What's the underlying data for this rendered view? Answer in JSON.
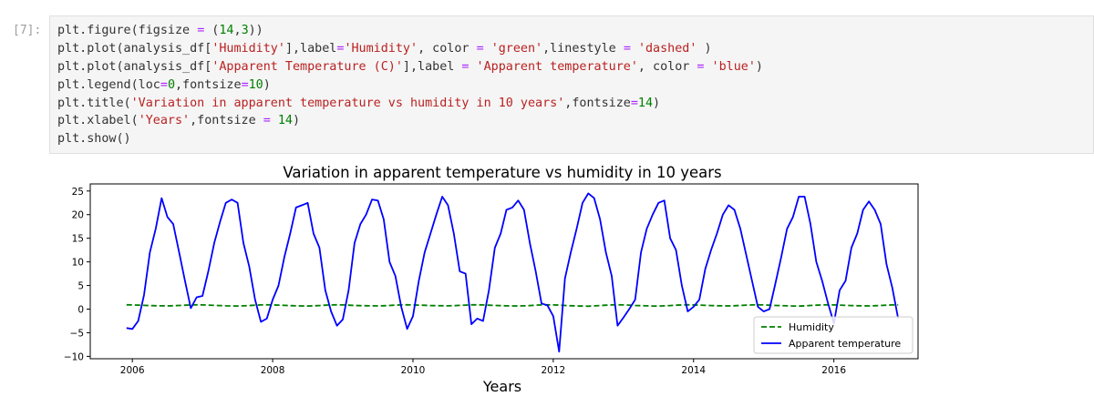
{
  "cell": {
    "prompt": "[7]:",
    "code_lines": [
      [
        {
          "t": "plt.figure(figsize ",
          "c": "var"
        },
        {
          "t": "=",
          "c": "kw"
        },
        {
          "t": " (",
          "c": "var"
        },
        {
          "t": "14",
          "c": "num"
        },
        {
          "t": ",",
          "c": "var"
        },
        {
          "t": "3",
          "c": "num"
        },
        {
          "t": "))",
          "c": "var"
        }
      ],
      [
        {
          "t": "plt.plot(analysis_df[",
          "c": "var"
        },
        {
          "t": "'Humidity'",
          "c": "str"
        },
        {
          "t": "],label",
          "c": "var"
        },
        {
          "t": "=",
          "c": "kw"
        },
        {
          "t": "'Humidity'",
          "c": "str"
        },
        {
          "t": ", color ",
          "c": "var"
        },
        {
          "t": "=",
          "c": "kw"
        },
        {
          "t": " ",
          "c": "var"
        },
        {
          "t": "'green'",
          "c": "str"
        },
        {
          "t": ",linestyle ",
          "c": "var"
        },
        {
          "t": "=",
          "c": "kw"
        },
        {
          "t": " ",
          "c": "var"
        },
        {
          "t": "'dashed'",
          "c": "str"
        },
        {
          "t": " )",
          "c": "var"
        }
      ],
      [
        {
          "t": "plt.plot(analysis_df[",
          "c": "var"
        },
        {
          "t": "'Apparent Temperature (C)'",
          "c": "str"
        },
        {
          "t": "],label ",
          "c": "var"
        },
        {
          "t": "=",
          "c": "kw"
        },
        {
          "t": " ",
          "c": "var"
        },
        {
          "t": "'Apparent temperature'",
          "c": "str"
        },
        {
          "t": ", color ",
          "c": "var"
        },
        {
          "t": "=",
          "c": "kw"
        },
        {
          "t": " ",
          "c": "var"
        },
        {
          "t": "'blue'",
          "c": "str"
        },
        {
          "t": ")",
          "c": "var"
        }
      ],
      [
        {
          "t": "plt.legend(loc",
          "c": "var"
        },
        {
          "t": "=",
          "c": "kw"
        },
        {
          "t": "0",
          "c": "num"
        },
        {
          "t": ",fontsize",
          "c": "var"
        },
        {
          "t": "=",
          "c": "kw"
        },
        {
          "t": "10",
          "c": "num"
        },
        {
          "t": ")",
          "c": "var"
        }
      ],
      [
        {
          "t": "plt.title(",
          "c": "var"
        },
        {
          "t": "'Variation in apparent temperature vs humidity in 10 years'",
          "c": "str"
        },
        {
          "t": ",fontsize",
          "c": "var"
        },
        {
          "t": "=",
          "c": "kw"
        },
        {
          "t": "14",
          "c": "num"
        },
        {
          "t": ")",
          "c": "var"
        }
      ],
      [
        {
          "t": "plt.xlabel(",
          "c": "var"
        },
        {
          "t": "'Years'",
          "c": "str"
        },
        {
          "t": ",fontsize ",
          "c": "var"
        },
        {
          "t": "=",
          "c": "kw"
        },
        {
          "t": " ",
          "c": "var"
        },
        {
          "t": "14",
          "c": "num"
        },
        {
          "t": ")",
          "c": "var"
        }
      ],
      [
        {
          "t": "plt.show()",
          "c": "var"
        }
      ]
    ]
  },
  "colors": {
    "humidity": "#008000",
    "temperature": "#0000ff",
    "str": "#ba2121",
    "num": "#008000",
    "kw": "#aa22ff"
  },
  "chart_data": {
    "type": "line",
    "title": "Variation in apparent temperature vs humidity in 10 years",
    "xlabel": "Years",
    "ylabel": "",
    "xlim": [
      2005.4,
      2017.2
    ],
    "ylim": [
      -10.5,
      26.5
    ],
    "x_ticks": [
      2006,
      2008,
      2010,
      2012,
      2014,
      2016
    ],
    "y_ticks": [
      -10,
      -5,
      0,
      5,
      10,
      15,
      20,
      25
    ],
    "grid": false,
    "legend_position": "bottom-right",
    "series": [
      {
        "name": "Humidity",
        "color": "#008000",
        "linestyle": "dashed",
        "x": [
          2005.917,
          2006.0,
          2006.083,
          2006.167,
          2006.25,
          2006.333,
          2006.417,
          2006.5,
          2006.583,
          2006.667,
          2006.75,
          2006.833,
          2006.917,
          2007.0,
          2007.083,
          2007.167,
          2007.25,
          2007.333,
          2007.417,
          2007.5,
          2007.583,
          2007.667,
          2007.75,
          2007.833,
          2007.917,
          2008.0,
          2008.083,
          2008.167,
          2008.25,
          2008.333,
          2008.417,
          2008.5,
          2008.583,
          2008.667,
          2008.75,
          2008.833,
          2008.917,
          2009.0,
          2009.083,
          2009.167,
          2009.25,
          2009.333,
          2009.417,
          2009.5,
          2009.583,
          2009.667,
          2009.75,
          2009.833,
          2009.917,
          2010.0,
          2010.083,
          2010.167,
          2010.25,
          2010.333,
          2010.417,
          2010.5,
          2010.583,
          2010.667,
          2010.75,
          2010.833,
          2010.917,
          2011.0,
          2011.083,
          2011.167,
          2011.25,
          2011.333,
          2011.417,
          2011.5,
          2011.583,
          2011.667,
          2011.75,
          2011.833,
          2011.917,
          2012.0,
          2012.083,
          2012.167,
          2012.25,
          2012.333,
          2012.417,
          2012.5,
          2012.583,
          2012.667,
          2012.75,
          2012.833,
          2012.917,
          2013.0,
          2013.083,
          2013.167,
          2013.25,
          2013.333,
          2013.417,
          2013.5,
          2013.583,
          2013.667,
          2013.75,
          2013.833,
          2013.917,
          2014.0,
          2014.083,
          2014.167,
          2014.25,
          2014.333,
          2014.417,
          2014.5,
          2014.583,
          2014.667,
          2014.75,
          2014.833,
          2014.917,
          2015.0,
          2015.083,
          2015.167,
          2015.25,
          2015.333,
          2015.417,
          2015.5,
          2015.583,
          2015.667,
          2015.75,
          2015.833,
          2015.917,
          2016.0,
          2016.083,
          2016.167,
          2016.25,
          2016.333,
          2016.417,
          2016.5,
          2016.583,
          2016.667,
          2016.75,
          2016.833,
          2016.917
        ],
        "values": [
          0.9,
          0.89,
          0.85,
          0.8,
          0.75,
          0.72,
          0.7,
          0.68,
          0.72,
          0.78,
          0.84,
          0.88,
          0.9,
          0.89,
          0.85,
          0.8,
          0.75,
          0.7,
          0.68,
          0.66,
          0.7,
          0.76,
          0.84,
          0.88,
          0.9,
          0.89,
          0.85,
          0.8,
          0.74,
          0.7,
          0.68,
          0.65,
          0.7,
          0.76,
          0.84,
          0.88,
          0.9,
          0.88,
          0.84,
          0.78,
          0.74,
          0.72,
          0.7,
          0.68,
          0.72,
          0.78,
          0.85,
          0.89,
          0.91,
          0.89,
          0.86,
          0.81,
          0.76,
          0.74,
          0.72,
          0.7,
          0.73,
          0.8,
          0.86,
          0.9,
          0.9,
          0.88,
          0.84,
          0.78,
          0.74,
          0.7,
          0.68,
          0.66,
          0.7,
          0.76,
          0.84,
          0.88,
          0.9,
          0.89,
          0.85,
          0.78,
          0.72,
          0.68,
          0.64,
          0.62,
          0.68,
          0.76,
          0.84,
          0.88,
          0.9,
          0.89,
          0.85,
          0.78,
          0.74,
          0.7,
          0.66,
          0.64,
          0.7,
          0.76,
          0.84,
          0.88,
          0.9,
          0.89,
          0.86,
          0.8,
          0.76,
          0.72,
          0.7,
          0.68,
          0.72,
          0.78,
          0.85,
          0.89,
          0.9,
          0.88,
          0.84,
          0.78,
          0.74,
          0.7,
          0.66,
          0.64,
          0.7,
          0.77,
          0.84,
          0.88,
          0.9,
          0.89,
          0.85,
          0.8,
          0.75,
          0.72,
          0.7,
          0.68,
          0.72,
          0.78,
          0.84,
          0.88,
          0.9
        ]
      },
      {
        "name": "Apparent temperature",
        "color": "#0000ff",
        "linestyle": "solid",
        "x": [
          2005.917,
          2006.0,
          2006.083,
          2006.167,
          2006.25,
          2006.333,
          2006.417,
          2006.5,
          2006.583,
          2006.667,
          2006.75,
          2006.833,
          2006.917,
          2007.0,
          2007.083,
          2007.167,
          2007.25,
          2007.333,
          2007.417,
          2007.5,
          2007.583,
          2007.667,
          2007.75,
          2007.833,
          2007.917,
          2008.0,
          2008.083,
          2008.167,
          2008.25,
          2008.333,
          2008.417,
          2008.5,
          2008.583,
          2008.667,
          2008.75,
          2008.833,
          2008.917,
          2009.0,
          2009.083,
          2009.167,
          2009.25,
          2009.333,
          2009.417,
          2009.5,
          2009.583,
          2009.667,
          2009.75,
          2009.833,
          2009.917,
          2010.0,
          2010.083,
          2010.167,
          2010.25,
          2010.333,
          2010.417,
          2010.5,
          2010.583,
          2010.667,
          2010.75,
          2010.833,
          2010.917,
          2011.0,
          2011.083,
          2011.167,
          2011.25,
          2011.333,
          2011.417,
          2011.5,
          2011.583,
          2011.667,
          2011.75,
          2011.833,
          2011.917,
          2012.0,
          2012.083,
          2012.167,
          2012.25,
          2012.333,
          2012.417,
          2012.5,
          2012.583,
          2012.667,
          2012.75,
          2012.833,
          2012.917,
          2013.0,
          2013.083,
          2013.167,
          2013.25,
          2013.333,
          2013.417,
          2013.5,
          2013.583,
          2013.667,
          2013.75,
          2013.833,
          2013.917,
          2014.0,
          2014.083,
          2014.167,
          2014.25,
          2014.333,
          2014.417,
          2014.5,
          2014.583,
          2014.667,
          2014.75,
          2014.833,
          2014.917,
          2015.0,
          2015.083,
          2015.167,
          2015.25,
          2015.333,
          2015.417,
          2015.5,
          2015.583,
          2015.667,
          2015.75,
          2015.833,
          2015.917,
          2016.0,
          2016.083,
          2016.167,
          2016.25,
          2016.333,
          2016.417,
          2016.5,
          2016.583,
          2016.667,
          2016.75,
          2016.833,
          2016.917
        ],
        "values": [
          -4,
          -4.2,
          -2.5,
          3,
          12,
          17,
          23.5,
          19.5,
          18,
          12,
          6,
          0.2,
          2.5,
          2.8,
          8,
          14,
          18.5,
          22.5,
          23.2,
          22.5,
          14,
          9,
          2,
          -2.7,
          -2,
          2,
          5,
          11,
          16,
          21.5,
          22,
          22.5,
          16,
          13,
          4,
          -0.5,
          -3.5,
          -2.2,
          4,
          14,
          18,
          20,
          23.2,
          23,
          19,
          10,
          7,
          0.5,
          -4.2,
          -1.5,
          6,
          12,
          16,
          20,
          23.8,
          22,
          16,
          8,
          7.5,
          -3.2,
          -2,
          -2.5,
          4,
          13,
          16,
          21,
          21.5,
          23,
          21,
          14,
          8,
          1.2,
          0.8,
          -1.5,
          -9,
          6.5,
          12,
          17,
          22.5,
          24.5,
          23.5,
          19,
          12,
          7,
          -3.5,
          -1.8,
          0,
          2,
          12,
          17,
          20,
          22.5,
          23,
          15,
          12.5,
          5,
          -0.5,
          0.5,
          2,
          8.5,
          12.5,
          16,
          20,
          22,
          21,
          17,
          11.5,
          6,
          0.5,
          -0.5,
          0,
          5.5,
          11,
          17,
          19.5,
          23.8,
          23.8,
          18,
          10,
          6,
          1.2,
          -3,
          4,
          6,
          13,
          16,
          21,
          22.8,
          21,
          18,
          9.5,
          4.5,
          -2
        ]
      }
    ]
  }
}
